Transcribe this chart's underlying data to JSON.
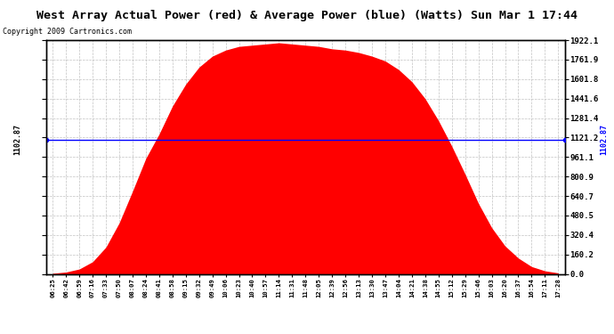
{
  "title": "West Array Actual Power (red) & Average Power (blue) (Watts) Sun Mar 1 17:44",
  "copyright": "Copyright 2009 Cartronics.com",
  "avg_power": 1102.87,
  "y_max": 1922.1,
  "y_min": 0.0,
  "y_ticks": [
    0.0,
    160.2,
    320.4,
    480.5,
    640.7,
    800.9,
    961.1,
    1121.2,
    1281.4,
    1441.6,
    1601.8,
    1761.9,
    1922.1
  ],
  "x_labels": [
    "06:25",
    "06:42",
    "06:59",
    "07:16",
    "07:33",
    "07:50",
    "08:07",
    "08:24",
    "08:41",
    "08:58",
    "09:15",
    "09:32",
    "09:49",
    "10:06",
    "10:23",
    "10:40",
    "10:57",
    "11:14",
    "11:31",
    "11:48",
    "12:05",
    "12:39",
    "12:56",
    "13:13",
    "13:30",
    "13:47",
    "14:04",
    "14:21",
    "14:38",
    "14:55",
    "15:12",
    "15:29",
    "15:46",
    "16:03",
    "16:20",
    "16:37",
    "16:54",
    "17:11",
    "17:28"
  ],
  "power_values": [
    5,
    15,
    40,
    100,
    220,
    420,
    680,
    950,
    1150,
    1380,
    1560,
    1700,
    1790,
    1840,
    1870,
    1880,
    1890,
    1900,
    1890,
    1880,
    1870,
    1850,
    1840,
    1820,
    1790,
    1750,
    1680,
    1580,
    1440,
    1260,
    1050,
    820,
    580,
    380,
    230,
    130,
    60,
    25,
    8
  ],
  "bg_color": "#ffffff",
  "plot_bg_color": "#ffffff",
  "fill_color": "#ff0000",
  "line_color": "#0000ff",
  "grid_color": "#bbbbbb"
}
